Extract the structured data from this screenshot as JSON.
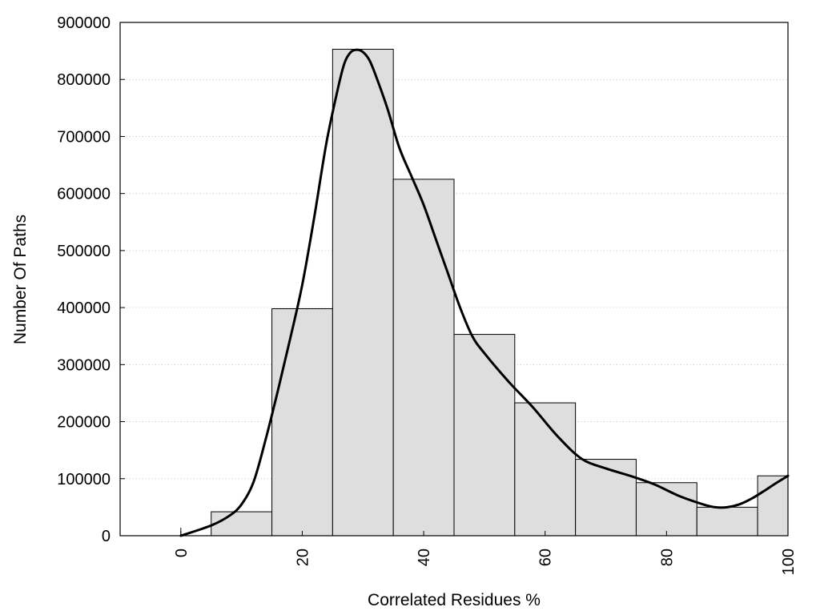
{
  "chart_data": {
    "type": "bar",
    "title": "",
    "xlabel": "Correlated Residues %",
    "ylabel": "Number Of Paths",
    "xlim": [
      -10,
      100
    ],
    "ylim": [
      0,
      900000
    ],
    "x_ticks": [
      "0",
      "20",
      "40",
      "60",
      "80",
      "100"
    ],
    "x_tick_values": [
      0,
      20,
      40,
      60,
      80,
      100
    ],
    "y_ticks": [
      "0",
      "100000",
      "200000",
      "300000",
      "400000",
      "500000",
      "600000",
      "700000",
      "800000",
      "900000"
    ],
    "y_tick_values": [
      0,
      100000,
      200000,
      300000,
      400000,
      500000,
      600000,
      700000,
      800000,
      900000
    ],
    "grid": "horizontal dotted",
    "bins": [
      {
        "center": 0,
        "width": 10,
        "value": 0
      },
      {
        "center": 10,
        "width": 10,
        "value": 42000
      },
      {
        "center": 20,
        "width": 10,
        "value": 398000
      },
      {
        "center": 30,
        "width": 10,
        "value": 853000
      },
      {
        "center": 40,
        "width": 10,
        "value": 625000
      },
      {
        "center": 50,
        "width": 10,
        "value": 353000
      },
      {
        "center": 60,
        "width": 10,
        "value": 233000
      },
      {
        "center": 70,
        "width": 10,
        "value": 134000
      },
      {
        "center": 80,
        "width": 10,
        "value": 93000
      },
      {
        "center": 90,
        "width": 10,
        "value": 50000
      },
      {
        "center": 100,
        "width": 10,
        "value": 105000
      }
    ],
    "curve": {
      "x": [
        0,
        5,
        8,
        10,
        12,
        14,
        16,
        18,
        20,
        22,
        24,
        26,
        27,
        28,
        29,
        30,
        31,
        32,
        34,
        36,
        38,
        40,
        42,
        44,
        46,
        48,
        50,
        54,
        58,
        62,
        66,
        70,
        74,
        78,
        82,
        86,
        88,
        90,
        92,
        94,
        96,
        98,
        100
      ],
      "y": [
        0,
        18000,
        35000,
        55000,
        95000,
        170000,
        255000,
        345000,
        440000,
        560000,
        690000,
        790000,
        830000,
        848000,
        852000,
        848000,
        835000,
        810000,
        750000,
        680000,
        630000,
        580000,
        520000,
        460000,
        400000,
        350000,
        320000,
        270000,
        225000,
        175000,
        135000,
        118000,
        105000,
        90000,
        70000,
        55000,
        50000,
        50000,
        55000,
        65000,
        78000,
        92000,
        105000
      ]
    }
  }
}
